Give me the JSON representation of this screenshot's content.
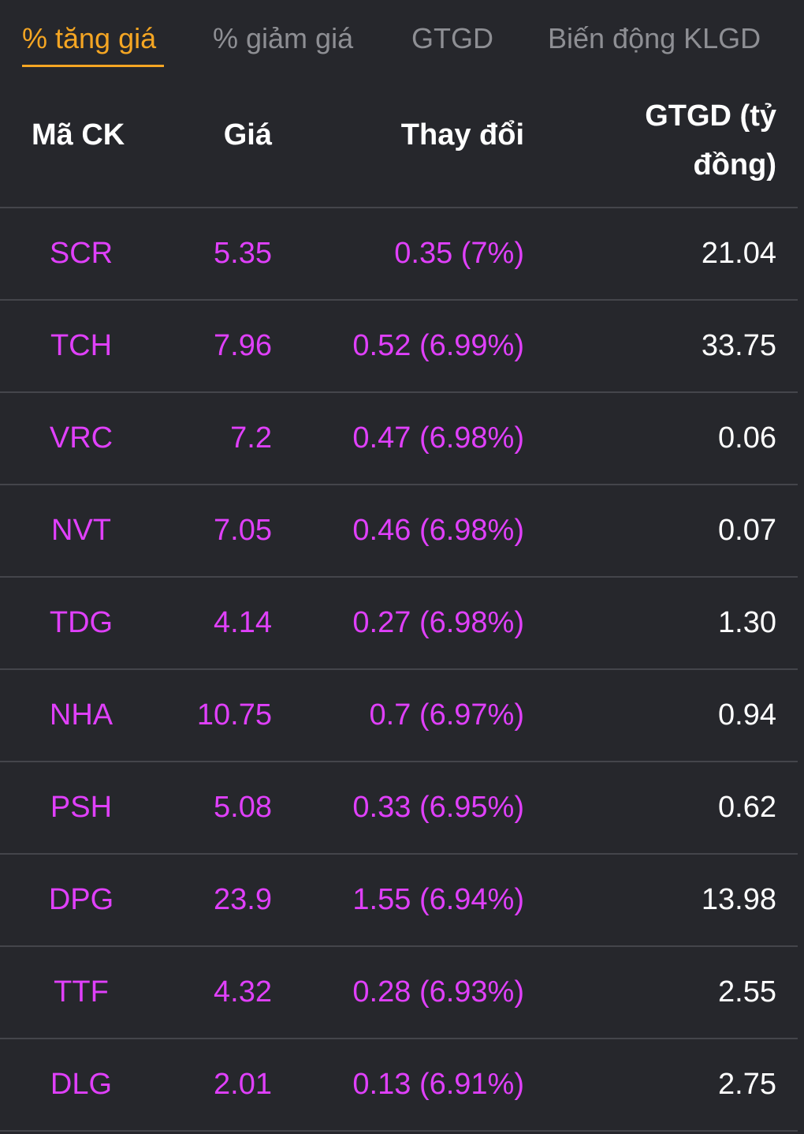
{
  "colors": {
    "background": "#26272c",
    "active_tab": "#f5a623",
    "inactive_tab": "#8e8f94",
    "gain": "#e040fb",
    "text": "#ffffff",
    "divider": "#44454b"
  },
  "tabs": [
    {
      "label": "% tăng giá",
      "active": true
    },
    {
      "label": "% giảm giá",
      "active": false
    },
    {
      "label": "GTGD",
      "active": false
    },
    {
      "label": "Biến động KLGD",
      "active": false
    }
  ],
  "table": {
    "headers": {
      "symbol": "Mã CK",
      "price": "Giá",
      "change": "Thay đổi",
      "value_line1": "GTGD (tỷ",
      "value_line2": "đồng)"
    },
    "rows": [
      {
        "symbol": "SCR",
        "price": "5.35",
        "change": "0.35 (7%)",
        "value": "21.04"
      },
      {
        "symbol": "TCH",
        "price": "7.96",
        "change": "0.52 (6.99%)",
        "value": "33.75"
      },
      {
        "symbol": "VRC",
        "price": "7.2",
        "change": "0.47 (6.98%)",
        "value": "0.06"
      },
      {
        "symbol": "NVT",
        "price": "7.05",
        "change": "0.46 (6.98%)",
        "value": "0.07"
      },
      {
        "symbol": "TDG",
        "price": "4.14",
        "change": "0.27 (6.98%)",
        "value": "1.30"
      },
      {
        "symbol": "NHA",
        "price": "10.75",
        "change": "0.7 (6.97%)",
        "value": "0.94"
      },
      {
        "symbol": "PSH",
        "price": "5.08",
        "change": "0.33 (6.95%)",
        "value": "0.62"
      },
      {
        "symbol": "DPG",
        "price": "23.9",
        "change": "1.55 (6.94%)",
        "value": "13.98"
      },
      {
        "symbol": "TTF",
        "price": "4.32",
        "change": "0.28 (6.93%)",
        "value": "2.55"
      },
      {
        "symbol": "DLG",
        "price": "2.01",
        "change": "0.13 (6.91%)",
        "value": "2.75"
      }
    ]
  }
}
